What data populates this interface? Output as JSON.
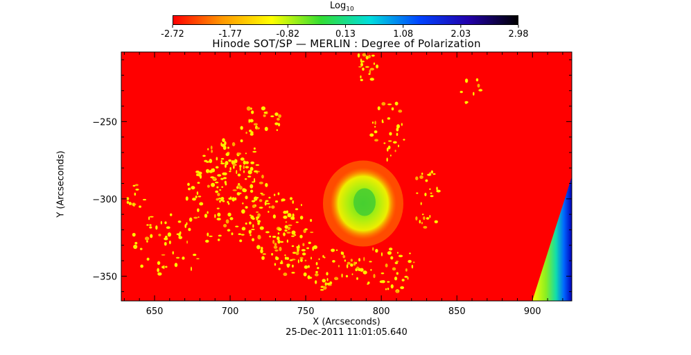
{
  "colorbar": {
    "title": "Log",
    "title_sub": "10",
    "tick_labels": [
      "-2.72",
      "-1.77",
      "-0.82",
      "0.13",
      "1.08",
      "2.03",
      "2.98"
    ],
    "colors": [
      "#ff0000",
      "#ff9900",
      "#ffff00",
      "#33dd33",
      "#00dddd",
      "#0044ff",
      "#2200aa",
      "#000000"
    ]
  },
  "chart_data": {
    "type": "heatmap",
    "title": "Hinode SOT/SP — MERLIN : Degree of Polarization",
    "xlabel": "X (Arcseconds)",
    "ylabel": "Y (Arcseconds)",
    "xlim": [
      628,
      926
    ],
    "ylim": [
      -366,
      -205
    ],
    "x_ticks": [
      650,
      700,
      750,
      800,
      850,
      900
    ],
    "y_ticks": [
      -250,
      -300,
      -350
    ],
    "x_tick_labels": [
      "650",
      "700",
      "750",
      "800",
      "850",
      "900"
    ],
    "y_tick_labels": [
      "−250",
      "−300",
      "−350"
    ],
    "color_scale": "log10",
    "value_range": [
      -2.72,
      2.98
    ],
    "background_value": -2.72,
    "features": [
      {
        "name": "central sunspot",
        "x": 788,
        "y": -303,
        "value": 0.13
      },
      {
        "name": "limb band",
        "x": 912,
        "y": -330,
        "value": 1.08
      }
    ]
  },
  "date": "25-Dec-2011 11:01:05.640"
}
